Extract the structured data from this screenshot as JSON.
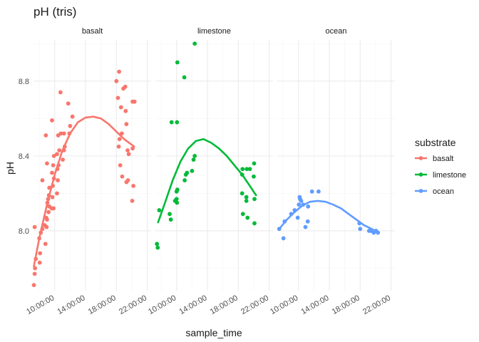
{
  "chart_data": {
    "type": "scatter",
    "title": "pH (tris)",
    "xlabel": "sample_time",
    "ylabel": "pH",
    "x_range_hours": [
      7.25,
      22.5
    ],
    "ylim": [
      7.68,
      9.02
    ],
    "y_ticks": [
      8.0,
      8.4,
      8.8
    ],
    "y_tick_labels": [
      "8.0",
      "8.4",
      "8.8"
    ],
    "x_ticks_hours": [
      10,
      14,
      18,
      22
    ],
    "x_tick_labels": [
      "10:00:00",
      "14:00:00",
      "18:00:00",
      "22:00:00"
    ],
    "grid": true,
    "legend": {
      "title": "substrate",
      "position": "right"
    },
    "facets": [
      {
        "name": "basalt",
        "color": "#F8766D",
        "points": [
          [
            7.3,
            7.71
          ],
          [
            7.4,
            7.77
          ],
          [
            7.45,
            7.8
          ],
          [
            7.55,
            7.85
          ],
          [
            7.4,
            8.02
          ],
          [
            8.05,
            7.83
          ],
          [
            8.1,
            7.88
          ],
          [
            8.0,
            7.96
          ],
          [
            8.2,
            7.99
          ],
          [
            8.4,
            8.01
          ],
          [
            8.7,
            8.03
          ],
          [
            9.0,
            8.06
          ],
          [
            8.9,
            8.07
          ],
          [
            8.8,
            7.93
          ],
          [
            8.95,
            8.02
          ],
          [
            9.2,
            8.1
          ],
          [
            9.3,
            8.13
          ],
          [
            9.05,
            8.15
          ],
          [
            9.15,
            8.17
          ],
          [
            9.25,
            8.19
          ],
          [
            8.4,
            8.27
          ],
          [
            9.3,
            8.23
          ],
          [
            9.6,
            8.12
          ],
          [
            9.85,
            8.12
          ],
          [
            9.7,
            8.18
          ],
          [
            9.75,
            8.24
          ],
          [
            9.9,
            8.28
          ],
          [
            9.65,
            8.31
          ],
          [
            9.8,
            8.35
          ],
          [
            10.3,
            8.2
          ],
          [
            10.4,
            8.27
          ],
          [
            10.35,
            8.33
          ],
          [
            10.5,
            8.35
          ],
          [
            9.9,
            8.4
          ],
          [
            10.3,
            8.41
          ],
          [
            9.0,
            8.36
          ],
          [
            10.6,
            8.43
          ],
          [
            10.45,
            8.51
          ],
          [
            9.65,
            8.59
          ],
          [
            8.85,
            8.51
          ],
          [
            11.05,
            8.38
          ],
          [
            11.2,
            8.43
          ],
          [
            11.3,
            8.45
          ],
          [
            10.8,
            8.52
          ],
          [
            11.2,
            8.52
          ],
          [
            11.9,
            8.52
          ],
          [
            12.0,
            8.56
          ],
          [
            12.3,
            8.61
          ],
          [
            11.75,
            8.68
          ],
          [
            10.75,
            8.74
          ],
          [
            18.0,
            8.8
          ],
          [
            18.35,
            8.85
          ],
          [
            18.2,
            8.71
          ],
          [
            18.6,
            8.66
          ],
          [
            18.9,
            8.76
          ],
          [
            19.15,
            8.77
          ],
          [
            19.2,
            8.64
          ],
          [
            19.3,
            8.57
          ],
          [
            20.1,
            8.69
          ],
          [
            20.35,
            8.69
          ],
          [
            18.4,
            8.49
          ],
          [
            18.7,
            8.52
          ],
          [
            18.3,
            8.45
          ],
          [
            19.45,
            8.43
          ],
          [
            19.6,
            8.41
          ],
          [
            20.1,
            8.44
          ],
          [
            18.5,
            8.35
          ],
          [
            18.75,
            8.29
          ],
          [
            19.3,
            8.26
          ],
          [
            19.5,
            8.27
          ],
          [
            20.2,
            8.24
          ],
          [
            20.05,
            8.16
          ]
        ],
        "trend": [
          [
            7.3,
            7.81
          ],
          [
            8,
            7.96
          ],
          [
            9,
            8.14
          ],
          [
            10,
            8.3
          ],
          [
            11,
            8.43
          ],
          [
            12,
            8.52
          ],
          [
            13,
            8.58
          ],
          [
            14,
            8.605
          ],
          [
            15,
            8.61
          ],
          [
            16,
            8.6
          ],
          [
            17,
            8.57
          ],
          [
            18,
            8.53
          ],
          [
            19,
            8.49
          ],
          [
            20.3,
            8.45
          ]
        ]
      },
      {
        "name": "limestone",
        "color": "#00BA38",
        "points": [
          [
            7.45,
            7.93
          ],
          [
            7.55,
            7.91
          ],
          [
            7.75,
            8.11
          ],
          [
            9.1,
            8.09
          ],
          [
            9.25,
            8.06
          ],
          [
            9.8,
            8.16
          ],
          [
            10.0,
            8.17
          ],
          [
            10.05,
            8.15
          ],
          [
            10.0,
            8.21
          ],
          [
            10.1,
            8.22
          ],
          [
            11.05,
            8.27
          ],
          [
            11.2,
            8.3
          ],
          [
            11.35,
            8.31
          ],
          [
            9.35,
            8.58
          ],
          [
            10.05,
            8.58
          ],
          [
            12.0,
            8.32
          ],
          [
            12.2,
            8.38
          ],
          [
            12.35,
            8.4
          ],
          [
            10.1,
            8.9
          ],
          [
            11.0,
            8.82
          ],
          [
            12.35,
            9.0
          ],
          [
            18.55,
            8.33
          ],
          [
            18.5,
            8.3
          ],
          [
            19.1,
            8.33
          ],
          [
            19.5,
            8.33
          ],
          [
            20.05,
            8.36
          ],
          [
            20.0,
            8.29
          ],
          [
            18.5,
            8.2
          ],
          [
            19.05,
            8.18
          ],
          [
            20.1,
            8.17
          ],
          [
            19.05,
            8.16
          ],
          [
            18.6,
            8.09
          ],
          [
            19.2,
            8.07
          ],
          [
            20.1,
            8.04
          ]
        ],
        "trend": [
          [
            7.6,
            8.045
          ],
          [
            8.5,
            8.15
          ],
          [
            9.5,
            8.27
          ],
          [
            10.5,
            8.37
          ],
          [
            11.5,
            8.44
          ],
          [
            12.5,
            8.48
          ],
          [
            13.5,
            8.49
          ],
          [
            14.5,
            8.47
          ],
          [
            15.5,
            8.44
          ],
          [
            16.5,
            8.4
          ],
          [
            17.5,
            8.35
          ],
          [
            18.5,
            8.3
          ],
          [
            19.5,
            8.24
          ],
          [
            20.3,
            8.19
          ]
        ]
      },
      {
        "name": "ocean",
        "color": "#619CFF",
        "points": [
          [
            7.5,
            8.01
          ],
          [
            8.05,
            7.96
          ],
          [
            8.2,
            8.05
          ],
          [
            9.05,
            8.09
          ],
          [
            9.5,
            8.11
          ],
          [
            9.9,
            8.07
          ],
          [
            10.05,
            8.14
          ],
          [
            10.2,
            8.17
          ],
          [
            10.35,
            8.16
          ],
          [
            10.15,
            8.18
          ],
          [
            10.6,
            8.14
          ],
          [
            11.2,
            8.05
          ],
          [
            11.25,
            8.13
          ],
          [
            11.75,
            8.21
          ],
          [
            10.9,
            8.02
          ],
          [
            12.6,
            8.21
          ],
          [
            17.9,
            8.04
          ],
          [
            18.0,
            8.01
          ],
          [
            19.15,
            8.0
          ],
          [
            19.35,
            8.0
          ],
          [
            19.75,
            7.99
          ],
          [
            20.05,
            8.0
          ],
          [
            20.3,
            7.99
          ]
        ],
        "trend": [
          [
            7.5,
            8.01
          ],
          [
            8.5,
            8.06
          ],
          [
            9.5,
            8.1
          ],
          [
            10.5,
            8.135
          ],
          [
            11.5,
            8.155
          ],
          [
            12.5,
            8.16
          ],
          [
            13.5,
            8.155
          ],
          [
            14.5,
            8.14
          ],
          [
            15.5,
            8.12
          ],
          [
            16.5,
            8.09
          ],
          [
            17.5,
            8.06
          ],
          [
            18.5,
            8.03
          ],
          [
            19.5,
            8.01
          ],
          [
            20.3,
            7.99
          ]
        ]
      }
    ]
  }
}
